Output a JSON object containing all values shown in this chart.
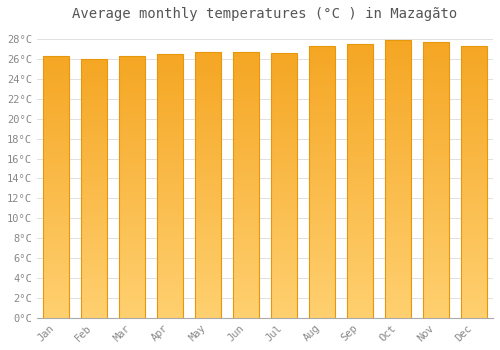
{
  "title": "Average monthly temperatures (°C ) in Mazagãto",
  "months": [
    "Jan",
    "Feb",
    "Mar",
    "Apr",
    "May",
    "Jun",
    "Jul",
    "Aug",
    "Sep",
    "Oct",
    "Nov",
    "Dec"
  ],
  "temperatures": [
    26.3,
    26.0,
    26.3,
    26.5,
    26.7,
    26.7,
    26.6,
    27.3,
    27.5,
    27.9,
    27.7,
    27.3
  ],
  "bar_color_top": "#F5A623",
  "bar_color_bottom": "#FFD070",
  "bar_edge_color": "#E8960A",
  "background_color": "#FFFFFF",
  "grid_color": "#E0E0E0",
  "ylim": [
    0,
    29
  ],
  "ytick_step": 2,
  "title_fontsize": 10,
  "tick_fontsize": 7.5,
  "bar_width": 0.7,
  "label_color": "#888888"
}
